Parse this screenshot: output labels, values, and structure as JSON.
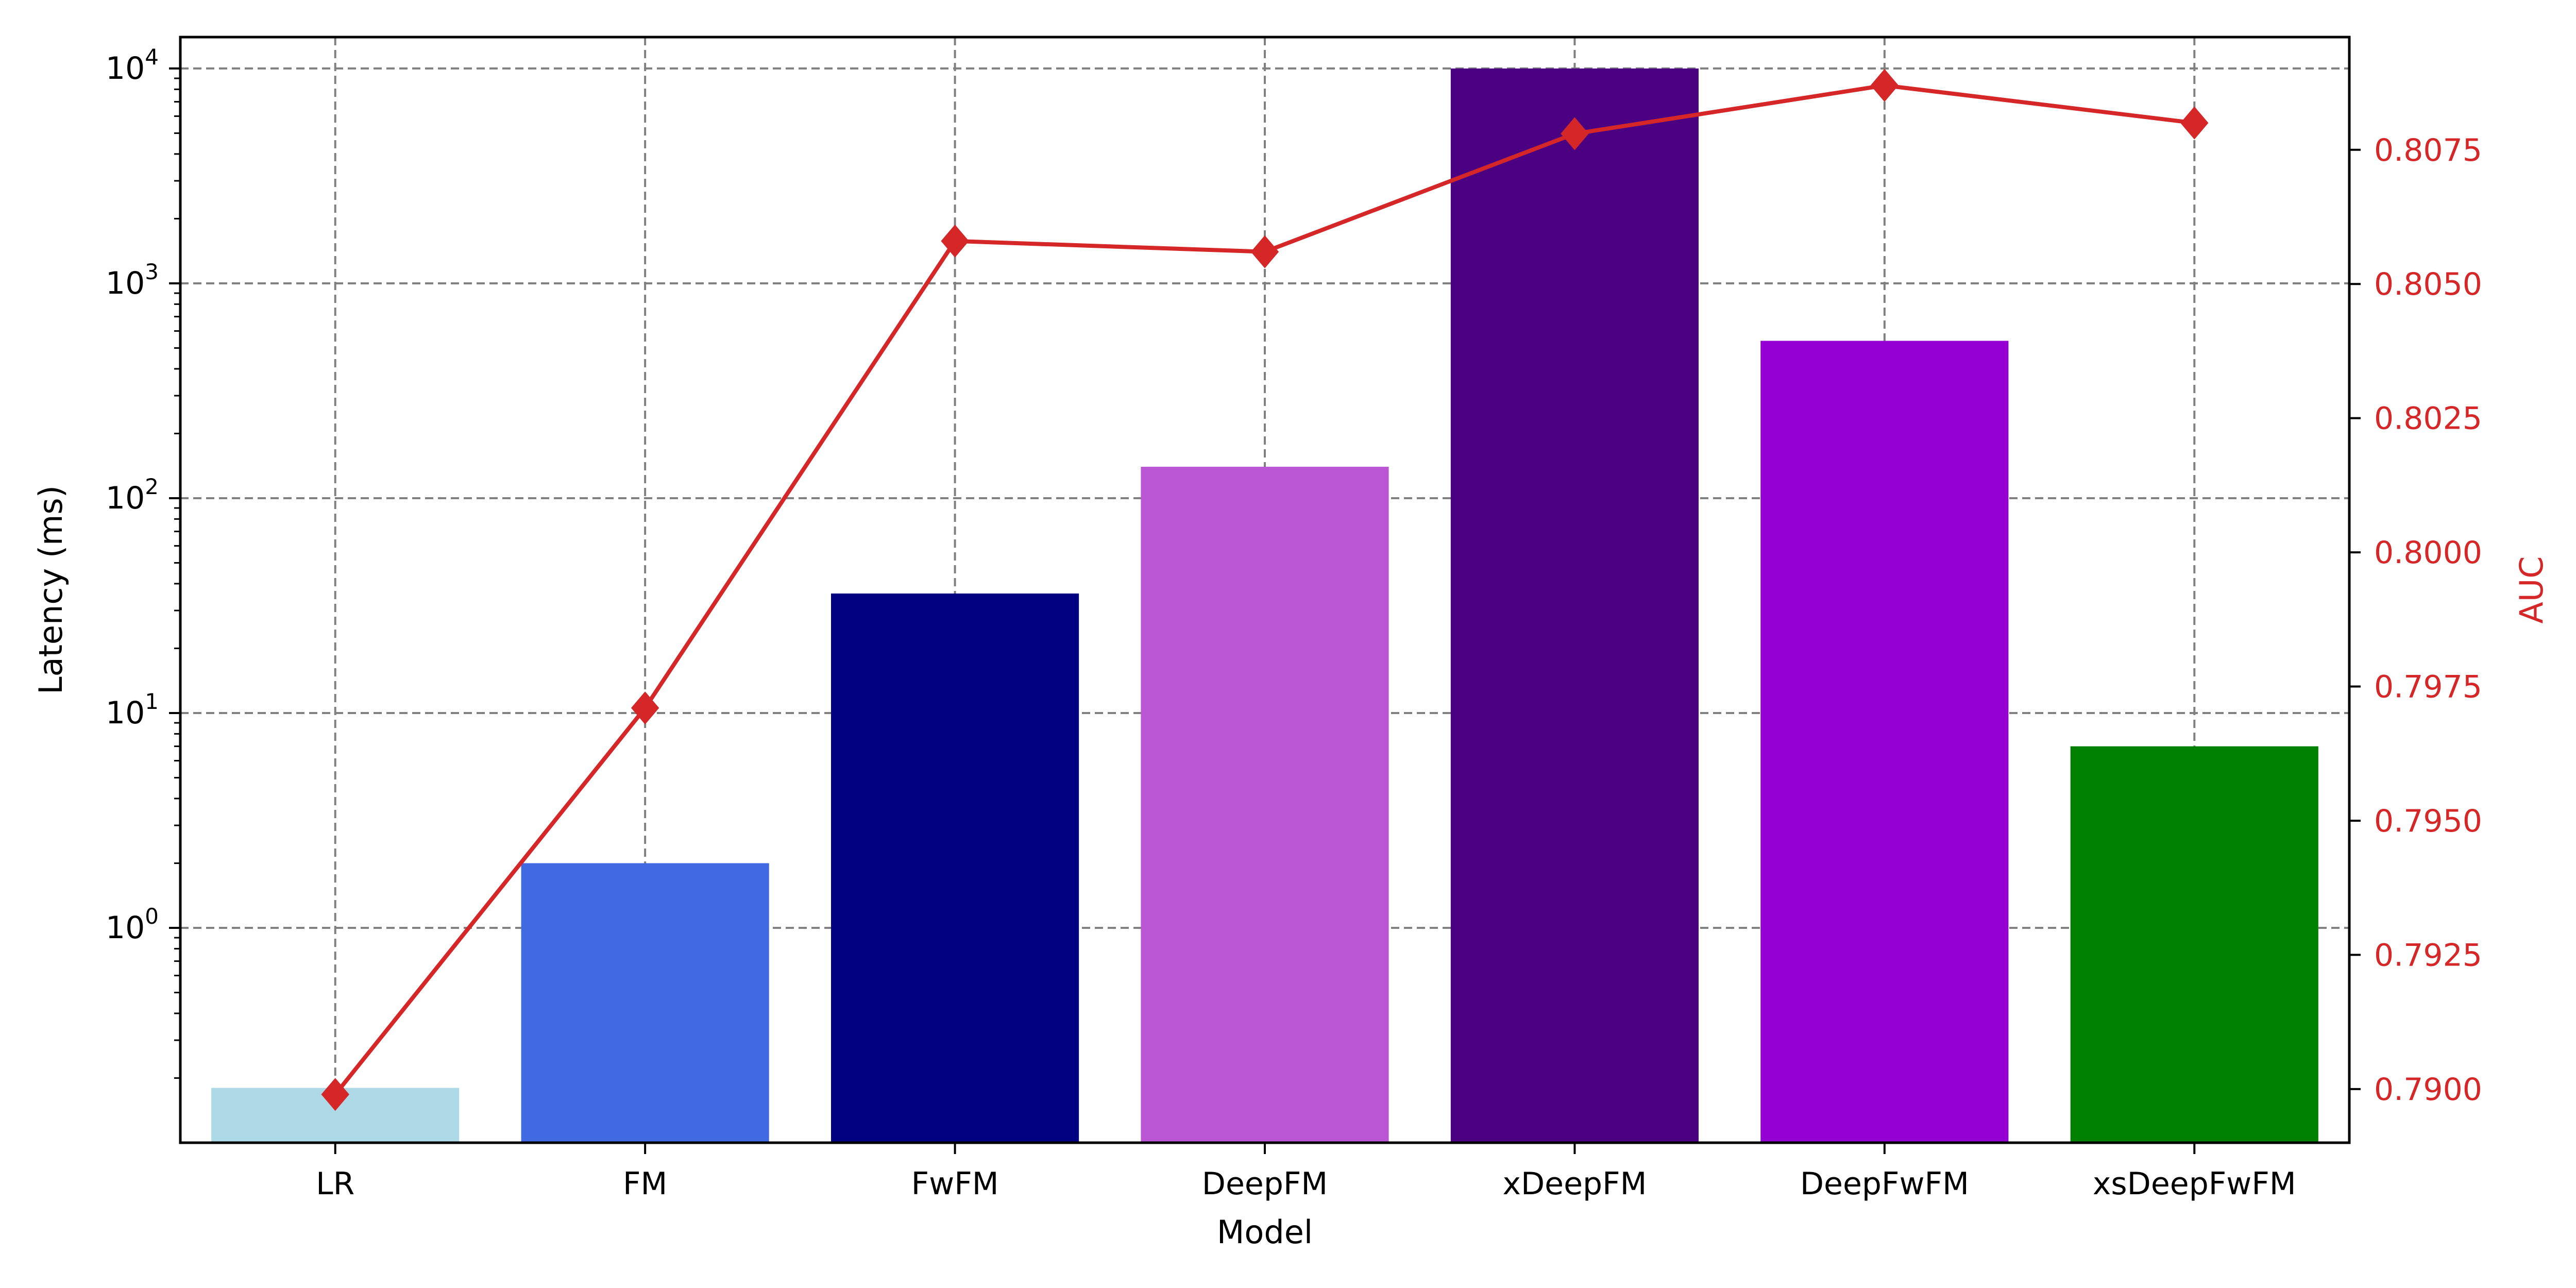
{
  "chart_data": {
    "type": "bar",
    "title": "",
    "xlabel": "Model",
    "ylabel": "Latency (ms)",
    "y2label": "AUC",
    "categories": [
      "LR",
      "FM",
      "FwFM",
      "DeepFM",
      "xDeepFM",
      "DeepFwFM",
      "xsDeepFwFM"
    ],
    "series": [
      {
        "type": "bar",
        "axis": "left",
        "values": [
          0.18,
          2.0,
          36,
          140,
          10000,
          540,
          7.0
        ],
        "colors": [
          "#add8e6",
          "#4169e1",
          "#000080",
          "#ba55d3",
          "#4b0082",
          "#9400d3",
          "#008000"
        ]
      },
      {
        "type": "line",
        "axis": "right",
        "marker": "diamond",
        "color": "#d62728",
        "values": [
          0.7899,
          0.7971,
          0.8058,
          0.8056,
          0.8078,
          0.8087,
          0.808
        ]
      }
    ],
    "y_scale": "log",
    "ylim": [
      0.1,
      14000
    ],
    "y_ticks": [
      {
        "value": 1,
        "base": "10",
        "exp": "0"
      },
      {
        "value": 10,
        "base": "10",
        "exp": "1"
      },
      {
        "value": 100,
        "base": "10",
        "exp": "2"
      },
      {
        "value": 1000,
        "base": "10",
        "exp": "3"
      },
      {
        "value": 10000,
        "base": "10",
        "exp": "4"
      }
    ],
    "y2lim": [
      0.789,
      0.8096
    ],
    "y2_ticks": [
      "0.7900",
      "0.7925",
      "0.7950",
      "0.7975",
      "0.8000",
      "0.8025",
      "0.8050",
      "0.8075"
    ],
    "grid": true,
    "legend": "none"
  }
}
